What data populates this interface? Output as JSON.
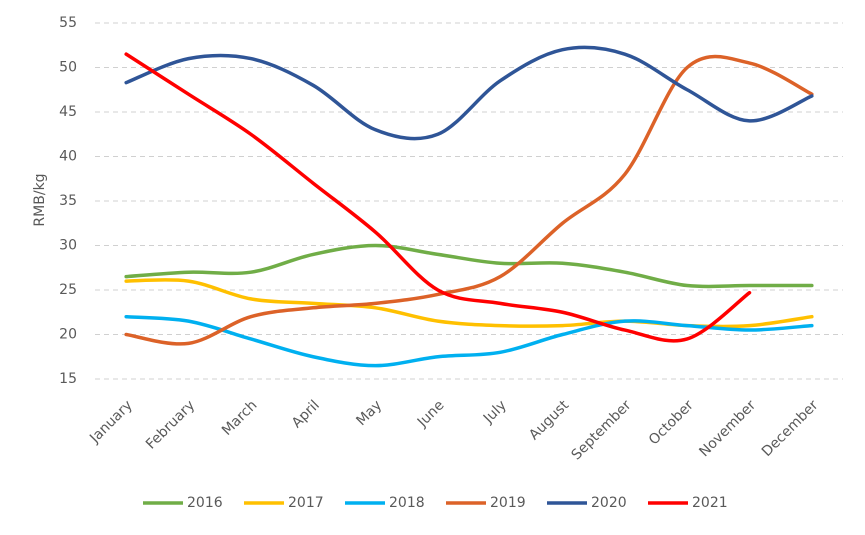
{
  "chart_data": {
    "type": "line",
    "y_label": "RMB/kg",
    "categories": [
      "January",
      "February",
      "March",
      "April",
      "May",
      "June",
      "July",
      "August",
      "September",
      "October",
      "November",
      "December"
    ],
    "series": [
      {
        "name": "2016",
        "color": "#70ad47",
        "values": [
          26.5,
          27,
          27,
          29,
          30,
          29,
          28,
          28,
          27,
          25.5,
          25.5,
          25.5
        ]
      },
      {
        "name": "2017",
        "color": "#ffc000",
        "values": [
          26,
          26,
          24,
          23.5,
          23,
          21.5,
          21,
          21,
          21.5,
          21,
          21,
          22
        ]
      },
      {
        "name": "2018",
        "color": "#00b0f0",
        "values": [
          22,
          21.5,
          19.5,
          17.5,
          16.5,
          17.5,
          18,
          20,
          21.5,
          21,
          20.5,
          21
        ]
      },
      {
        "name": "2019",
        "color": "#dc6228",
        "values": [
          20,
          19,
          22,
          23,
          23.5,
          24.5,
          26.5,
          32.5,
          38,
          50,
          50.5,
          47
        ]
      },
      {
        "name": "2020",
        "color": "#2f5597",
        "values": [
          48.3,
          51,
          51,
          48,
          43,
          42.5,
          48.5,
          52,
          51.5,
          47.5,
          44,
          46.8
        ]
      },
      {
        "name": "2021",
        "color": "#ff0000",
        "values": [
          51.5,
          47,
          42.5,
          37,
          31.5,
          25,
          23.5,
          22.5,
          20.5,
          19.5,
          24.7,
          null
        ]
      }
    ],
    "ylim": [
      15,
      55
    ],
    "yticks": [
      15,
      20,
      25,
      30,
      35,
      40,
      45,
      50,
      55
    ],
    "grid": true,
    "legend": "bottom"
  }
}
